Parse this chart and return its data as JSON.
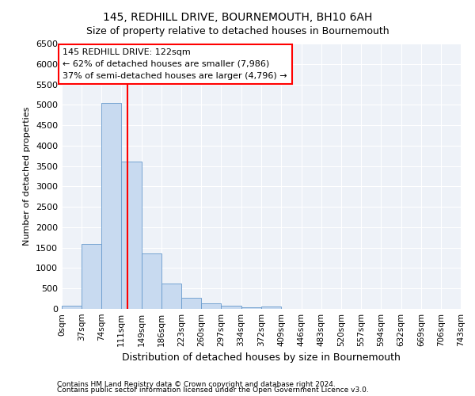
{
  "title": "145, REDHILL DRIVE, BOURNEMOUTH, BH10 6AH",
  "subtitle": "Size of property relative to detached houses in Bournemouth",
  "xlabel": "Distribution of detached houses by size in Bournemouth",
  "ylabel": "Number of detached properties",
  "bar_color": "#c8daf0",
  "bar_edge_color": "#6699cc",
  "background_color": "#eef2f8",
  "grid_color": "#ffffff",
  "red_line_x": 122,
  "annotation_line1": "145 REDHILL DRIVE: 122sqm",
  "annotation_line2": "← 62% of detached houses are smaller (7,986)",
  "annotation_line3": "37% of semi-detached houses are larger (4,796) →",
  "footer1": "Contains HM Land Registry data © Crown copyright and database right 2024.",
  "footer2": "Contains public sector information licensed under the Open Government Licence v3.0.",
  "bin_edges": [
    0,
    37,
    74,
    111,
    149,
    186,
    223,
    260,
    297,
    334,
    372,
    409,
    446,
    483,
    520,
    557,
    594,
    632,
    669,
    706,
    743
  ],
  "bar_heights": [
    80,
    1600,
    5050,
    3600,
    1350,
    620,
    270,
    130,
    80,
    30,
    50,
    0,
    0,
    0,
    0,
    0,
    0,
    0,
    0,
    0
  ],
  "ylim": [
    0,
    6500
  ],
  "yticks": [
    0,
    500,
    1000,
    1500,
    2000,
    2500,
    3000,
    3500,
    4000,
    4500,
    5000,
    5500,
    6000,
    6500
  ],
  "title_fontsize": 10,
  "subtitle_fontsize": 9,
  "ylabel_fontsize": 8,
  "xlabel_fontsize": 9,
  "tick_fontsize": 7.5,
  "ytick_fontsize": 8,
  "footer_fontsize": 6.5,
  "annot_fontsize": 8
}
